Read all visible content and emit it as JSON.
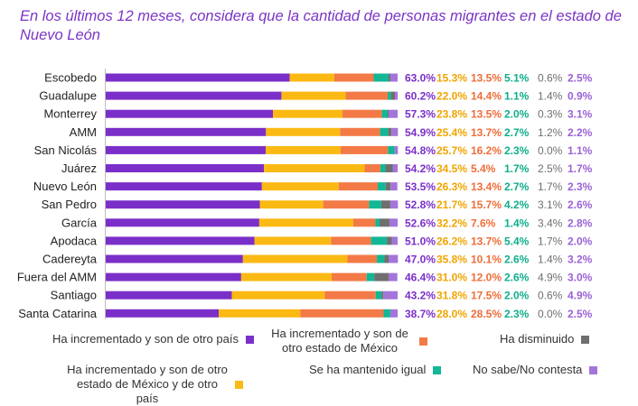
{
  "chart_data": {
    "type": "bar",
    "orientation": "horizontal",
    "stacked": true,
    "title": "En los últimos 12 meses, considera que la cantidad de personas migrantes en el estado de Nuevo León",
    "categories": [
      "Escobedo",
      "Guadalupe",
      "Monterrey",
      "AMM",
      "San Nicolás",
      "Juárez",
      "Nuevo León",
      "San Pedro",
      "García",
      "Apodaca",
      "Cadereyta",
      "Fuera del AMM",
      "Santiago",
      "Santa Catarina"
    ],
    "series": [
      {
        "name": "Ha incrementado y son de otro país",
        "color": "#7b2fc9",
        "values": [
          63.0,
          60.2,
          57.3,
          54.9,
          54.8,
          54.2,
          53.5,
          52.8,
          52.6,
          51.0,
          47.0,
          46.4,
          43.2,
          38.7
        ],
        "labels": [
          "63.0%",
          "60.2%",
          "57.3%",
          "54.9%",
          "54.8%",
          "54.2%",
          "53.5%",
          "52.8%",
          "52.6%",
          "51.0%",
          "47.0%",
          "46.4%",
          "43.2%",
          "38.7%"
        ]
      },
      {
        "name": "Ha incrementado y son de otro estado de México y de otro país",
        "color": "#fbb913",
        "values": [
          15.3,
          22.0,
          23.8,
          25.4,
          25.7,
          34.5,
          26.3,
          21.7,
          32.2,
          26.2,
          35.8,
          31.0,
          31.8,
          28.0
        ],
        "labels": [
          "15.3%",
          "22.0%",
          "23.8%",
          "25.4%",
          "25.7%",
          "34.5%",
          "26.3%",
          "21.7%",
          "32.2%",
          "26.2%",
          "35.8%",
          "31.0%",
          "31.8%",
          "28.0%"
        ]
      },
      {
        "name": "Ha incrementado y son de otro estado de México",
        "color": "#f37a47",
        "values": [
          13.5,
          14.4,
          13.5,
          13.7,
          16.2,
          5.4,
          13.4,
          15.7,
          7.6,
          13.7,
          10.1,
          12.0,
          17.5,
          28.5
        ],
        "labels": [
          "13.5%",
          "14.4%",
          "13.5%",
          "13.7%",
          "16.2%",
          "5.4%",
          "13.4%",
          "15.7%",
          "7.6%",
          "13.7%",
          "10.1%",
          "12.0%",
          "17.5%",
          "28.5%"
        ]
      },
      {
        "name": "Se ha mantenido igual",
        "color": "#12b795",
        "values": [
          5.1,
          1.1,
          2.0,
          2.7,
          2.3,
          1.7,
          2.7,
          4.2,
          1.4,
          5.4,
          2.6,
          2.6,
          2.0,
          2.3
        ],
        "labels": [
          "5.1%",
          "1.1%",
          "2.0%",
          "2.7%",
          "2.3%",
          "1.7%",
          "2.7%",
          "4.2%",
          "1.4%",
          "5.4%",
          "2.6%",
          "2.6%",
          "2.0%",
          "2.3%"
        ]
      },
      {
        "name": "Ha disminuido",
        "color": "#6f6f6f",
        "values": [
          0.6,
          1.4,
          0.3,
          1.2,
          0.0,
          2.5,
          1.7,
          3.1,
          3.4,
          1.7,
          1.4,
          4.9,
          0.6,
          0.0
        ],
        "labels": [
          "0.6%",
          "1.4%",
          "0.3%",
          "1.2%",
          "0.0%",
          "2.5%",
          "1.7%",
          "3.1%",
          "3.4%",
          "1.7%",
          "1.4%",
          "4.9%",
          "0.6%",
          "0.0%"
        ]
      },
      {
        "name": "No sabe/No contesta",
        "color": "#a475d9",
        "values": [
          2.5,
          0.9,
          3.1,
          2.2,
          1.1,
          1.7,
          2.3,
          2.6,
          2.8,
          2.0,
          3.2,
          3.0,
          4.9,
          2.5
        ],
        "labels": [
          "2.5%",
          "0.9%",
          "3.1%",
          "2.2%",
          "1.1%",
          "1.7%",
          "2.3%",
          "2.6%",
          "2.8%",
          "2.0%",
          "3.2%",
          "3.0%",
          "4.9%",
          "2.5%"
        ]
      }
    ],
    "xlim": [
      0,
      100
    ],
    "grid": false,
    "legend_position": "bottom"
  },
  "legend": {
    "item1": "Ha incrementado y son de otro país",
    "item2": "Ha incrementado y son de otro estado de México",
    "item3": "Ha disminuido",
    "item4": "Ha incrementado y son de otro estado de México y de otro país",
    "item5": "Se ha mantenido igual",
    "item6": "No sabe/No contesta"
  },
  "colors": {
    "title": "#7b35c4",
    "label_c0": "#7b2fc9",
    "label_c1": "#f0a500",
    "label_c2": "#ef6d3a",
    "label_c3": "#0fae8c",
    "label_c4": "#6f6f6f",
    "label_c5": "#9a62d6"
  }
}
